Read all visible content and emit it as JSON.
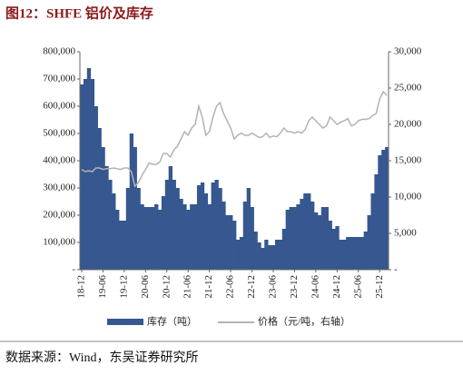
{
  "chart_data": {
    "type": "bar_line_dual",
    "title": "图12：SHFE 铝价及库存",
    "source": "数据来源：Wind，东吴证券研究所",
    "categories": [
      "18-12",
      null,
      null,
      null,
      null,
      null,
      "19-06",
      null,
      null,
      null,
      null,
      null,
      "19-12",
      null,
      null,
      null,
      null,
      null,
      "20-06",
      null,
      null,
      null,
      null,
      null,
      "20-12",
      null,
      null,
      null,
      null,
      null,
      "21-06",
      null,
      null,
      null,
      null,
      null,
      "21-12",
      null,
      null,
      null,
      null,
      null,
      "22-06",
      null,
      null,
      null,
      null,
      null,
      "22-12",
      null,
      null,
      null,
      null,
      null,
      "23-06",
      null,
      null,
      null,
      null,
      null,
      "23-12",
      null,
      null,
      null,
      null,
      null,
      "24-06",
      null,
      null,
      null,
      null,
      null,
      "24-12",
      null,
      null,
      null,
      null,
      null,
      "25-06",
      null,
      null,
      null,
      null,
      null,
      "25-12",
      null,
      null
    ],
    "series": [
      {
        "name": "库存（吨）",
        "color": "#36578f",
        "axis": "y",
        "values": [
          680000,
          700000,
          740000,
          700000,
          600000,
          520000,
          450000,
          380000,
          330000,
          280000,
          220000,
          180000,
          180000,
          300000,
          500000,
          450000,
          300000,
          240000,
          230000,
          230000,
          230000,
          240000,
          220000,
          270000,
          330000,
          380000,
          330000,
          300000,
          260000,
          240000,
          220000,
          240000,
          240000,
          310000,
          320000,
          280000,
          240000,
          320000,
          330000,
          300000,
          250000,
          200000,
          200000,
          180000,
          110000,
          120000,
          250000,
          300000,
          230000,
          140000,
          100000,
          80000,
          110000,
          90000,
          90000,
          110000,
          110000,
          150000,
          220000,
          230000,
          230000,
          240000,
          260000,
          280000,
          280000,
          250000,
          210000,
          200000,
          230000,
          230000,
          180000,
          150000,
          160000,
          110000,
          110000,
          120000,
          120000,
          120000,
          120000,
          120000,
          140000,
          200000,
          280000,
          350000,
          420000,
          440000,
          450000
        ]
      },
      {
        "name": "价格（元/吨，右轴）",
        "color": "#b3b3b3",
        "axis": "y2",
        "values": [
          13800,
          13500,
          13600,
          13500,
          14000,
          14000,
          13800,
          13900,
          13900,
          14000,
          13900,
          13800,
          14000,
          14000,
          13500,
          11500,
          12000,
          13000,
          13800,
          14700,
          14500,
          14500,
          14800,
          16000,
          16000,
          15500,
          16500,
          17000,
          18000,
          19000,
          18500,
          19500,
          20000,
          22500,
          21000,
          18500,
          19000,
          21000,
          22500,
          23000,
          21500,
          20500,
          19500,
          18000,
          18500,
          18800,
          18500,
          18500,
          18800,
          18500,
          18200,
          18300,
          18800,
          18200,
          18400,
          18300,
          18800,
          19500,
          19000,
          19000,
          18800,
          19000,
          18800,
          19300,
          20500,
          21000,
          20500,
          20000,
          19500,
          19800,
          21000,
          20500,
          20000,
          20300,
          20500,
          20800,
          19800,
          20000,
          20500,
          20700,
          20700,
          20800,
          21200,
          21500,
          23500,
          24500,
          24000
        ]
      }
    ],
    "ylim": [
      0,
      800000
    ],
    "yticks": [
      {
        "value": 0,
        "label": "-"
      },
      {
        "value": 100000,
        "label": "100,000"
      },
      {
        "value": 200000,
        "label": "200,000"
      },
      {
        "value": 300000,
        "label": "300,000"
      },
      {
        "value": 400000,
        "label": "400,000"
      },
      {
        "value": 500000,
        "label": "500,000"
      },
      {
        "value": 600000,
        "label": "600,000"
      },
      {
        "value": 700000,
        "label": "700,000"
      },
      {
        "value": 800000,
        "label": "800,000"
      }
    ],
    "y2lim": [
      0,
      30000
    ],
    "y2ticks": [
      {
        "value": 0,
        "label": "-"
      },
      {
        "value": 5000,
        "label": "5,000"
      },
      {
        "value": 10000,
        "label": "10,000"
      },
      {
        "value": 15000,
        "label": "15,000"
      },
      {
        "value": 20000,
        "label": "20,000"
      },
      {
        "value": 25000,
        "label": "25,000"
      },
      {
        "value": 30000,
        "label": "30,000"
      }
    ]
  }
}
